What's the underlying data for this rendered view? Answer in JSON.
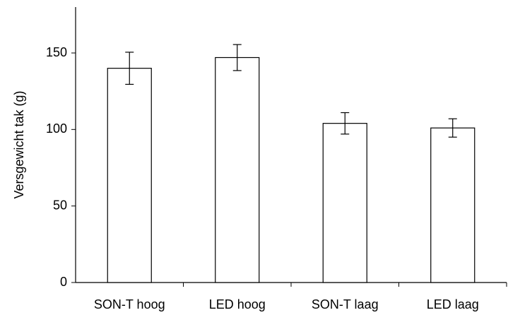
{
  "chart_data": {
    "type": "bar",
    "ylabel": "Versgewicht tak (g)",
    "categories": [
      "SON-T hoog",
      "LED hoog",
      "SON-T laag",
      "LED laag"
    ],
    "values": [
      140,
      147,
      104,
      101
    ],
    "errors": [
      10.5,
      8.5,
      7,
      6
    ],
    "color": "#ffffff",
    "ylim": [
      0,
      180
    ],
    "yticks": [
      0,
      50,
      100,
      150
    ],
    "grid": false
  }
}
